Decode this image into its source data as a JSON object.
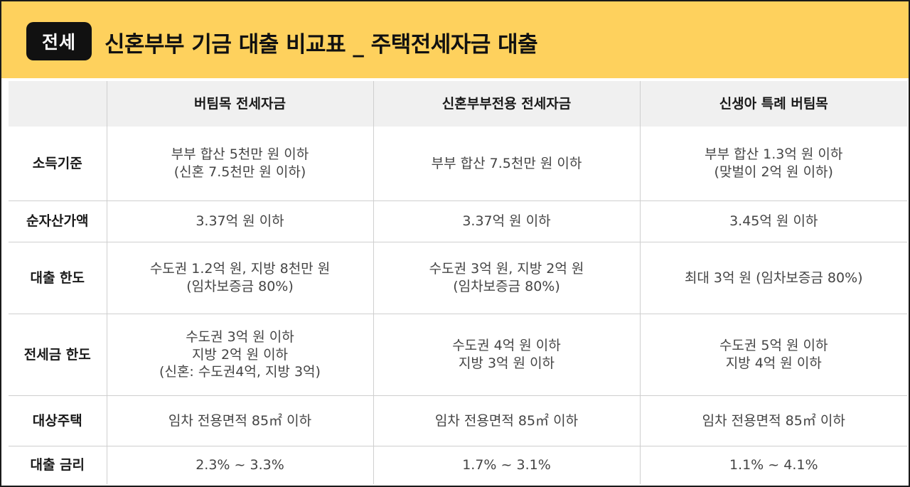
{
  "header": {
    "badge": "전세",
    "title": "신혼부부 기금 대출 비교표 _ 주택전세자금 대출",
    "background": "#fed15d"
  },
  "table": {
    "columns": [
      "",
      "버팀목 전세자금",
      "신혼부부전용 전세자금",
      "신생아 특례 버팀목"
    ],
    "rows": [
      {
        "label": "소득기준",
        "cells": [
          [
            "부부 합산 5천만 원 이하",
            "(신혼 7.5천만 원 이하)"
          ],
          [
            "부부 합산  7.5천만 원 이하"
          ],
          [
            "부부 합산 1.3억 원 이하",
            "(맞벌이 2억 원 이하)"
          ]
        ]
      },
      {
        "label": "순자산가액",
        "cells": [
          [
            "3.37억 원 이하"
          ],
          [
            "3.37억 원 이하"
          ],
          [
            "3.45억 원 이하"
          ]
        ]
      },
      {
        "label": "대출 한도",
        "cells": [
          [
            "수도권 1.2억 원, 지방 8천만 원",
            "(임차보증금 80%)"
          ],
          [
            "수도권 3억 원, 지방 2억 원",
            "(임차보증금 80%)"
          ],
          [
            "최대 3억 원 (임차보증금 80%)"
          ]
        ]
      },
      {
        "label": "전세금 한도",
        "cells": [
          [
            "수도권 3억 원 이하",
            "지방 2억 원 이하",
            "(신혼: 수도권4억, 지방 3억)"
          ],
          [
            "수도권 4억 원 이하",
            "지방 3억 원 이하"
          ],
          [
            "수도권 5억 원 이하",
            "지방 4억 원 이하"
          ]
        ]
      },
      {
        "label": "대상주택",
        "cells": [
          [
            "임차 전용면적 85㎡  이하"
          ],
          [
            "임차 전용면적 85㎡  이하"
          ],
          [
            "임차 전용면적 85㎡  이하"
          ]
        ]
      },
      {
        "label": "대출 금리",
        "cells": [
          [
            "2.3% ~ 3.3%"
          ],
          [
            "1.7%  ~  3.1%"
          ],
          [
            "1.1%  ~  4.1%"
          ]
        ]
      }
    ]
  }
}
